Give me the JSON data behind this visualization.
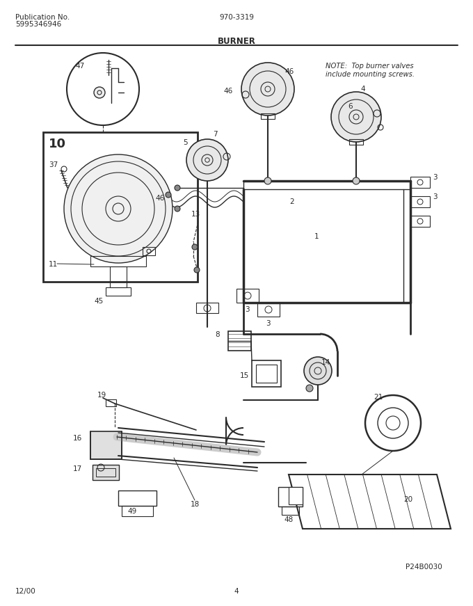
{
  "title": "BURNER",
  "pub_no": "Publication No.",
  "pub_num": "970-3319",
  "pub_sub": "5995346946",
  "footer_left": "12/00",
  "footer_center": "4",
  "footer_right": "P24B0030",
  "bg_color": "#ffffff",
  "line_color": "#2a2a2a",
  "note_text": "NOTE:  Top burner valves\ninclude mounting screws.",
  "figsize": [
    6.8,
    8.71
  ],
  "dpi": 100
}
